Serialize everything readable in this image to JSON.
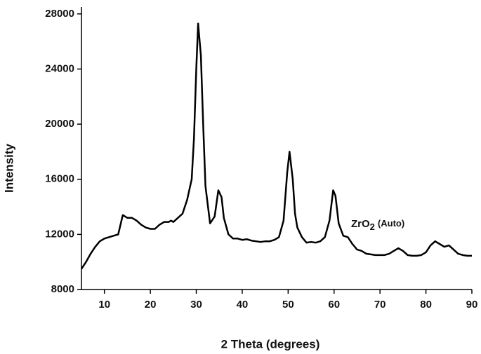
{
  "chart_data": {
    "type": "line",
    "xlabel": "2 Theta (degrees)",
    "ylabel": "Intensity",
    "annotation": [
      "ZrO",
      "2",
      "(Auto)"
    ],
    "xlim": [
      5,
      90
    ],
    "xticks": [
      10,
      20,
      30,
      40,
      50,
      60,
      70,
      80,
      90
    ],
    "ylim": [
      8000,
      28500
    ],
    "yticks": [
      8000,
      12000,
      16000,
      20000,
      24000,
      28000
    ],
    "grid": false,
    "series": [
      {
        "color": "#000000",
        "x": [
          5,
          6,
          7,
          8,
          9,
          10,
          11,
          12,
          13,
          13.5,
          14,
          15,
          16,
          17,
          18,
          19,
          20,
          21,
          22,
          23,
          24,
          24.5,
          25,
          26,
          27,
          28,
          29,
          29.5,
          30,
          30.4,
          31,
          31.5,
          32,
          33,
          34,
          34.8,
          35.5,
          36,
          37,
          38,
          39,
          40,
          41,
          42,
          43,
          44,
          45,
          46,
          47,
          48,
          49,
          49.8,
          50.3,
          51,
          51.5,
          52,
          53,
          54,
          55,
          56,
          57,
          58,
          59,
          59.8,
          60.3,
          61,
          62,
          63,
          64,
          65,
          66,
          67,
          68,
          69,
          70,
          71,
          72,
          73,
          74,
          75,
          76,
          77,
          78,
          79,
          80,
          81,
          82,
          83,
          84,
          85,
          86,
          87,
          88,
          89,
          90
        ],
        "values": [
          9500,
          10000,
          10600,
          11100,
          11500,
          11700,
          11800,
          11900,
          12000,
          12700,
          13400,
          13200,
          13200,
          13000,
          12700,
          12500,
          12400,
          12400,
          12700,
          12900,
          12900,
          13000,
          12900,
          13200,
          13500,
          14500,
          16000,
          19000,
          24000,
          27300,
          25000,
          20000,
          15500,
          12800,
          13300,
          15200,
          14700,
          13200,
          12000,
          11700,
          11700,
          11600,
          11650,
          11550,
          11500,
          11450,
          11500,
          11500,
          11600,
          11800,
          13000,
          16500,
          18000,
          16000,
          13500,
          12500,
          11800,
          11400,
          11450,
          11400,
          11500,
          11800,
          13000,
          15200,
          14800,
          12800,
          11900,
          11800,
          11300,
          10900,
          10800,
          10600,
          10550,
          10500,
          10500,
          10500,
          10600,
          10800,
          11000,
          10800,
          10500,
          10450,
          10450,
          10500,
          10700,
          11200,
          11500,
          11300,
          11100,
          11200,
          10900,
          10600,
          10500,
          10450,
          10450
        ]
      }
    ]
  }
}
